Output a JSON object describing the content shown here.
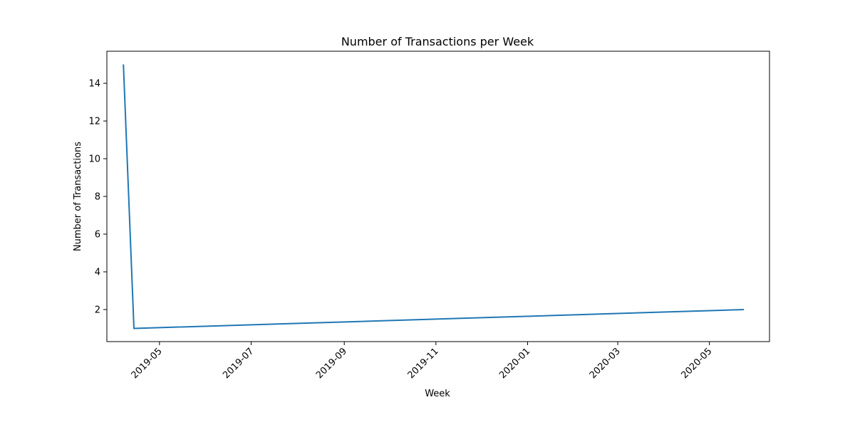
{
  "chart_data": {
    "type": "line",
    "title": "Number of Transactions per Week",
    "xlabel": "Week",
    "ylabel": "Number of Transactions",
    "x_type": "date",
    "xlim": [
      "2019-03-27",
      "2020-06-10"
    ],
    "ylim": [
      0.3,
      15.7
    ],
    "x_ticks": [
      "2019-05-01",
      "2019-07-01",
      "2019-09-01",
      "2019-11-01",
      "2020-01-01",
      "2020-03-01",
      "2020-05-01"
    ],
    "x_tick_labels": [
      "2019-05",
      "2019-07",
      "2019-09",
      "2019-11",
      "2020-01",
      "2020-03",
      "2020-05"
    ],
    "y_ticks": [
      2,
      4,
      6,
      8,
      10,
      12,
      14
    ],
    "y_tick_labels": [
      "2",
      "4",
      "6",
      "8",
      "10",
      "12",
      "14"
    ],
    "grid": false,
    "legend": "none",
    "series": [
      {
        "color": "#1f77b4",
        "x": [
          "2019-04-07",
          "2019-04-14",
          "2020-05-24"
        ],
        "y": [
          15,
          1,
          2
        ]
      }
    ]
  }
}
